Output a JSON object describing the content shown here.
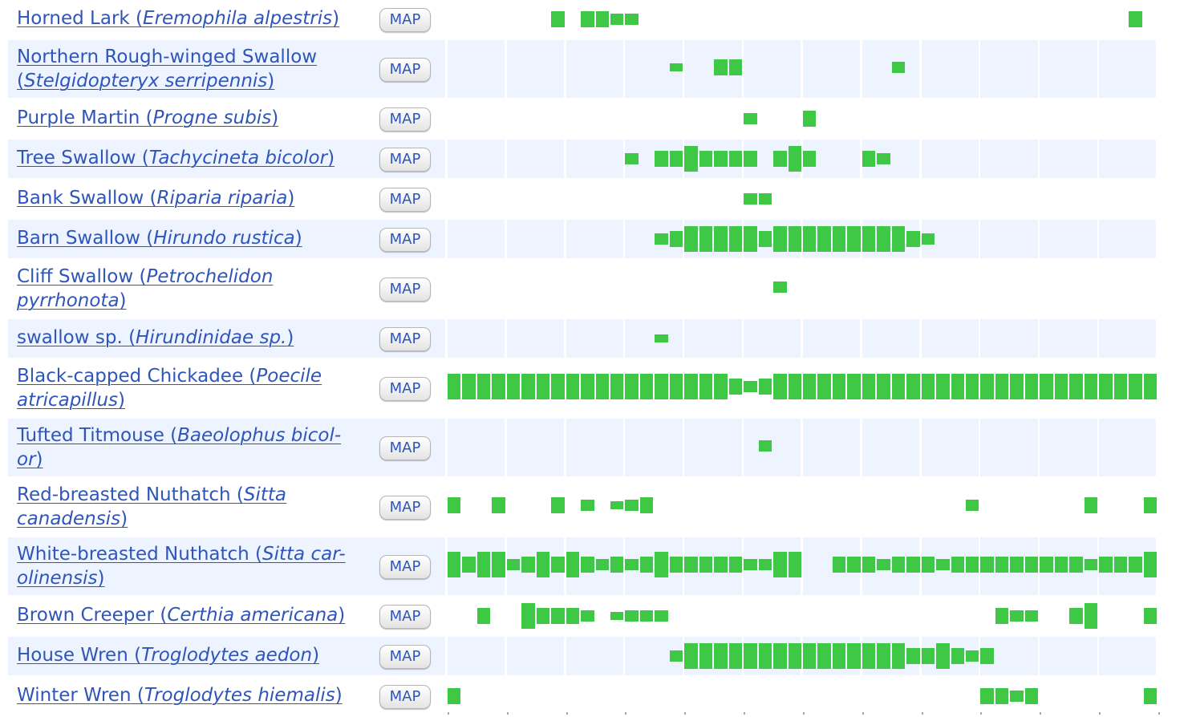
{
  "colors": {
    "link": "#2f55b8",
    "row_shade": "#edf4ff",
    "bar": "#3ec845"
  },
  "map_label": "MAP",
  "species": [
    {
      "common": "Horned Lark",
      "scientific": "Eremophila alpestris",
      "shaded": false,
      "weeks": {
        "7": "m",
        "9": "m",
        "10": "m",
        "11": "s",
        "12": "s",
        "46": "m"
      }
    },
    {
      "common": "Northern Rough-winged Swallow",
      "scientific": "Stelgidopteryx serripennis",
      "shaded": true,
      "weeks": {
        "15": "xs",
        "18": "m",
        "19": "m",
        "30": "s"
      }
    },
    {
      "common": "Purple Martin",
      "scientific": "Progne subis",
      "shaded": false,
      "weeks": {
        "20": "s",
        "24": "m"
      }
    },
    {
      "common": "Tree Swallow",
      "scientific": "Tachycineta bicolor",
      "shaded": true,
      "weeks": {
        "12": "s",
        "14": "m",
        "15": "m",
        "16": "l",
        "17": "m",
        "18": "m",
        "19": "m",
        "20": "m",
        "22": "m",
        "23": "l",
        "24": "m",
        "28": "m",
        "29": "s"
      }
    },
    {
      "common": "Bank Swallow",
      "scientific": "Riparia riparia",
      "shaded": false,
      "weeks": {
        "20": "s",
        "21": "s"
      }
    },
    {
      "common": "Barn Swallow",
      "scientific": "Hirundo rustica",
      "shaded": true,
      "weeks": {
        "14": "s",
        "15": "m",
        "16": "l",
        "17": "l",
        "18": "l",
        "19": "l",
        "20": "l",
        "21": "m",
        "22": "l",
        "23": "l",
        "24": "l",
        "25": "l",
        "26": "l",
        "27": "l",
        "28": "l",
        "29": "l",
        "30": "l",
        "31": "m",
        "32": "s"
      }
    },
    {
      "common": "Cliff Swallow",
      "scientific": "Petrochelidon pyrrhonota",
      "shaded": false,
      "weeks": {
        "22": "s"
      }
    },
    {
      "common": "swallow sp.",
      "scientific": "Hirundinidae sp.",
      "shaded": true,
      "weeks": {
        "14": "xs"
      }
    },
    {
      "common": "Black-capped Chickadee",
      "scientific": "Poecile atricapillus",
      "shaded": false,
      "all": "l",
      "weeks": {
        "19": "m",
        "20": "s",
        "21": "m"
      }
    },
    {
      "common": "Tufted Titmouse",
      "scientific": "Baeolophus bicolor",
      "shaded": true,
      "wrap": [
        "Tufted Titmouse (",
        "Baeolophus bicol-",
        "or",
        ")"
      ],
      "weeks": {
        "21": "s"
      }
    },
    {
      "common": "Red-breasted Nuthatch",
      "scientific": "Sitta canadensis",
      "shaded": false,
      "weeks": {
        "0": "m",
        "3": "m",
        "7": "m",
        "9": "s",
        "11": "xs",
        "12": "s",
        "13": "m",
        "35": "s",
        "43": "m",
        "47": "m"
      }
    },
    {
      "common": "White-breasted Nuthatch",
      "scientific": "Sitta carolinensis",
      "shaded": true,
      "wrap": [
        "White-breasted Nuthatch (",
        "Sitta car-",
        "olinensis",
        ")"
      ],
      "all": "m",
      "weeks": {
        "0": "l",
        "2": "l",
        "3": "l",
        "4": "s",
        "5": "m",
        "6": "l",
        "8": "l",
        "9": "m",
        "10": "s",
        "11": "m",
        "12": "s",
        "13": "m",
        "14": "l",
        "15": "m",
        "18": "m",
        "19": "m",
        "20": "s",
        "21": "s",
        "22": "l",
        "23": "l",
        "24": "n",
        "25": "n",
        "28": "m",
        "29": "s",
        "32": "m",
        "33": "s",
        "34": "m",
        "36": "m",
        "39": "m",
        "42": "m",
        "43": "s",
        "44": "m",
        "47": "l"
      }
    },
    {
      "common": "Brown Creeper",
      "scientific": "Certhia americana",
      "shaded": false,
      "weeks": {
        "2": "m",
        "5": "l",
        "6": "m",
        "7": "m",
        "8": "m",
        "9": "s",
        "11": "xs",
        "12": "s",
        "13": "s",
        "14": "s",
        "37": "m",
        "38": "s",
        "39": "s",
        "42": "m",
        "43": "l",
        "47": "m"
      }
    },
    {
      "common": "House Wren",
      "scientific": "Troglodytes aedon",
      "shaded": true,
      "all": "l",
      "weeks": {
        "0": "n",
        "1": "n",
        "2": "n",
        "3": "n",
        "4": "n",
        "5": "n",
        "6": "n",
        "7": "n",
        "8": "n",
        "9": "n",
        "10": "n",
        "11": "n",
        "12": "n",
        "13": "n",
        "14": "n",
        "15": "s",
        "31": "m",
        "32": "m",
        "33": "l",
        "34": "m",
        "35": "s",
        "36": "m",
        "37": "n",
        "38": "n",
        "39": "n",
        "40": "n",
        "41": "n",
        "42": "n",
        "43": "n",
        "44": "n",
        "45": "n",
        "46": "n",
        "47": "n"
      }
    },
    {
      "common": "Winter Wren",
      "scientific": "Troglodytes hiemalis",
      "shaded": false,
      "weeks": {
        "0": "m",
        "36": "m",
        "37": "m",
        "38": "s",
        "39": "m",
        "47": "m"
      }
    }
  ]
}
